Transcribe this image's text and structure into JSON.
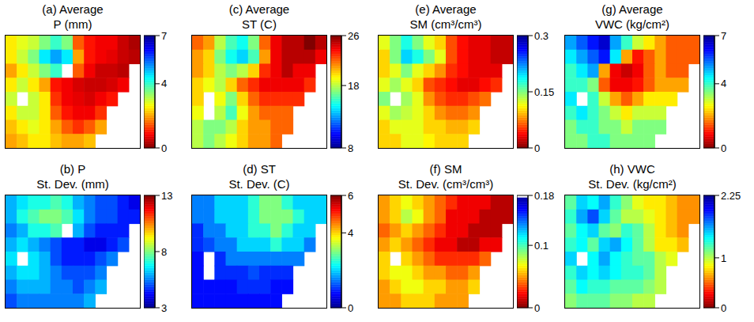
{
  "chart_data": [
    {
      "type": "heatmap",
      "title": [
        "(a) Average",
        "P (mm)"
      ],
      "colorbar": {
        "range": [
          0,
          7
        ],
        "ticks": [
          0,
          4,
          7
        ],
        "colors": [
          "#800000",
          "#ff0000",
          "#ff8000",
          "#ffff00",
          "#80ff80",
          "#00ffff",
          "#0080ff",
          "#0000ff",
          "#00008f"
        ]
      },
      "cells": [
        [
          2.5,
          2.8,
          3,
          3.5,
          4,
          3.5,
          1.5,
          1,
          0.8,
          0.8,
          0.5,
          0.3
        ],
        [
          2.5,
          3,
          3.5,
          4.5,
          5,
          4.5,
          2,
          1,
          0.8,
          0.7,
          0.5,
          0.4
        ],
        [
          2,
          2.5,
          3,
          3.5,
          4,
          null,
          1.5,
          0.8,
          0.5,
          0.5,
          0.4,
          null
        ],
        [
          2.5,
          3,
          2.5,
          2,
          1,
          0.8,
          0.6,
          0.5,
          0.5,
          0.6,
          0.8,
          null
        ],
        [
          3,
          null,
          3,
          2.5,
          1.2,
          0.8,
          0.7,
          0.6,
          0.8,
          1,
          null,
          null
        ],
        [
          2.5,
          3,
          3,
          2.5,
          1.5,
          1,
          0.8,
          0.8,
          1.2,
          null,
          null,
          null
        ],
        [
          2.2,
          2.5,
          2.8,
          2.5,
          2,
          1.5,
          1.2,
          1.5,
          2,
          null,
          null,
          null
        ],
        [
          2,
          2.2,
          2.5,
          2.5,
          2.2,
          2,
          2,
          2.2,
          null,
          null,
          null,
          null
        ]
      ]
    },
    {
      "type": "heatmap",
      "title": [
        "(b) P",
        "St. Dev. (mm)"
      ],
      "colorbar": {
        "range": [
          3,
          13
        ],
        "ticks": [
          3,
          8,
          13
        ],
        "colors": [
          "#00008f",
          "#0000ff",
          "#0080ff",
          "#00ffff",
          "#80ff80",
          "#ffff00",
          "#ff8000",
          "#ff0000",
          "#800000"
        ]
      },
      "cells": [
        [
          6,
          6.5,
          7,
          7,
          7.5,
          7,
          6,
          5.5,
          5,
          5,
          4.5,
          4
        ],
        [
          6,
          7,
          7.5,
          8,
          8,
          7.5,
          6.5,
          5.5,
          5,
          5,
          4.5,
          4.5
        ],
        [
          5.5,
          6,
          7,
          7,
          7.5,
          null,
          6,
          5,
          4.5,
          4.5,
          4.5,
          null
        ],
        [
          6,
          6.5,
          6,
          5.5,
          5,
          4.5,
          4.5,
          4,
          4,
          4.5,
          5,
          null
        ],
        [
          6.5,
          null,
          6.5,
          6,
          5,
          4.5,
          4.5,
          4.5,
          5,
          5.5,
          null,
          null
        ],
        [
          6,
          6.5,
          6.5,
          6,
          5.5,
          5,
          5,
          5,
          5.5,
          null,
          null,
          null
        ],
        [
          5.5,
          6,
          6,
          6,
          5.5,
          5.5,
          5,
          5.5,
          6,
          null,
          null,
          null
        ],
        [
          5,
          5.5,
          5.5,
          5.5,
          5.5,
          5.5,
          5.5,
          6,
          null,
          null,
          null,
          null
        ]
      ]
    },
    {
      "type": "heatmap",
      "title": [
        "(c) Average",
        "ST (C)"
      ],
      "colorbar": {
        "range": [
          8,
          26
        ],
        "ticks": [
          8,
          18,
          26
        ],
        "colors": [
          "#00008f",
          "#0000ff",
          "#0080ff",
          "#00ffff",
          "#80ff80",
          "#ffff00",
          "#ff8000",
          "#ff0000",
          "#800000"
        ]
      },
      "cells": [
        [
          22,
          21,
          18,
          16,
          15,
          17,
          22,
          24,
          25,
          25,
          26,
          25
        ],
        [
          21,
          20,
          17,
          15,
          14,
          16,
          21,
          24,
          25,
          25,
          25,
          24
        ],
        [
          21,
          20,
          18,
          17,
          18,
          20,
          23,
          24,
          25,
          24,
          24,
          null
        ],
        [
          20,
          19,
          18,
          20,
          22,
          23,
          24,
          24,
          24,
          24,
          23,
          null
        ],
        [
          20,
          null,
          19,
          17,
          20,
          22,
          23,
          23,
          23,
          23,
          null,
          null
        ],
        [
          19,
          null,
          18,
          16,
          19,
          21,
          22,
          22,
          22,
          null,
          null,
          null
        ],
        [
          18,
          17,
          17,
          18,
          20,
          21,
          21,
          22,
          22,
          null,
          null,
          null
        ],
        [
          18,
          17,
          18,
          19,
          20,
          21,
          21,
          22,
          null,
          null,
          null,
          null
        ]
      ]
    },
    {
      "type": "heatmap",
      "title": [
        "(d) ST",
        "St. Dev. (C)"
      ],
      "colorbar": {
        "range": [
          0,
          6
        ],
        "ticks": [
          0,
          4,
          6
        ],
        "colors": [
          "#00008f",
          "#0000ff",
          "#0080ff",
          "#00ffff",
          "#80ff80",
          "#ffff00",
          "#ff8000",
          "#ff0000",
          "#800000"
        ]
      },
      "cells": [
        [
          1.5,
          1.5,
          2,
          2,
          2,
          2.5,
          3,
          3,
          2.5,
          2,
          2,
          2
        ],
        [
          1.5,
          1.5,
          2,
          2,
          2,
          2.5,
          3,
          3,
          3,
          2.5,
          2,
          2
        ],
        [
          1,
          1.5,
          1.5,
          2,
          2,
          2.5,
          2.5,
          3,
          2.5,
          2,
          2,
          null
        ],
        [
          1,
          1.2,
          1.5,
          1.5,
          2,
          2,
          2,
          2.5,
          2,
          2,
          1.5,
          null
        ],
        [
          0.8,
          null,
          1,
          1.5,
          1.5,
          1.5,
          1.5,
          1.5,
          1.5,
          1.5,
          null,
          null
        ],
        [
          0.8,
          null,
          1,
          1,
          1,
          1.2,
          1,
          1,
          1,
          null,
          null,
          null
        ],
        [
          0.8,
          0.8,
          0.8,
          0.8,
          1,
          1,
          1,
          0.8,
          0.8,
          null,
          null,
          null
        ],
        [
          0.8,
          0.8,
          0.8,
          0.8,
          0.8,
          0.8,
          0.8,
          0.8,
          null,
          null,
          null,
          null
        ]
      ]
    },
    {
      "type": "heatmap",
      "title": [
        "(e) Average",
        "SM (cm³/cm³)"
      ],
      "colorbar": {
        "range": [
          0,
          0.3
        ],
        "ticks": [
          0,
          0.15,
          0.3
        ],
        "colors": [
          "#800000",
          "#ff0000",
          "#ff8000",
          "#ffff00",
          "#80ff80",
          "#00ffff",
          "#0080ff",
          "#0000ff",
          "#00008f"
        ]
      },
      "cells": [
        [
          0.12,
          0.15,
          0.18,
          0.15,
          0.12,
          0.1,
          0.06,
          0.04,
          0.03,
          0.03,
          0.02,
          0.02
        ],
        [
          0.1,
          0.15,
          0.2,
          0.18,
          0.15,
          0.12,
          0.06,
          0.04,
          0.03,
          0.03,
          0.02,
          0.02
        ],
        [
          0.1,
          0.12,
          0.15,
          0.12,
          0.1,
          0.08,
          0.05,
          0.04,
          0.03,
          0.03,
          0.03,
          null
        ],
        [
          0.12,
          0.14,
          0.12,
          0.1,
          0.06,
          0.05,
          0.04,
          0.03,
          0.03,
          0.04,
          0.05,
          null
        ],
        [
          0.15,
          null,
          0.14,
          0.12,
          0.08,
          0.06,
          0.05,
          0.05,
          0.06,
          0.07,
          null,
          null
        ],
        [
          0.12,
          0.14,
          0.13,
          0.12,
          0.1,
          0.08,
          0.07,
          0.07,
          0.08,
          null,
          null,
          null
        ],
        [
          0.1,
          0.12,
          0.12,
          0.12,
          0.1,
          0.1,
          0.09,
          0.09,
          0.1,
          null,
          null,
          null
        ],
        [
          0.1,
          0.1,
          0.12,
          0.12,
          0.11,
          0.1,
          0.1,
          0.1,
          null,
          null,
          null,
          null
        ]
      ]
    },
    {
      "type": "heatmap",
      "title": [
        "(f) SM",
        "St. Dev. (cm³/cm³)"
      ],
      "colorbar": {
        "range": [
          0,
          0.18
        ],
        "ticks": [
          0,
          0.1,
          0.18
        ],
        "colors": [
          "#800000",
          "#ff0000",
          "#ff8000",
          "#ffff00",
          "#80ff80",
          "#00ffff",
          "#0080ff",
          "#0000ff",
          "#00008f"
        ]
      },
      "cells": [
        [
          0.05,
          0.06,
          0.07,
          0.06,
          0.05,
          0.04,
          0.03,
          0.02,
          0.02,
          0.02,
          0.01,
          0.01
        ],
        [
          0.05,
          0.06,
          0.08,
          0.07,
          0.05,
          0.04,
          0.02,
          0.02,
          0.02,
          0.01,
          0.01,
          0.01
        ],
        [
          0.04,
          0.05,
          0.06,
          0.05,
          0.04,
          0.03,
          0.02,
          0.02,
          0.01,
          0.01,
          0.01,
          null
        ],
        [
          0.05,
          0.06,
          0.05,
          0.04,
          0.03,
          0.02,
          0.02,
          0.01,
          0.01,
          0.02,
          0.02,
          null
        ],
        [
          0.06,
          null,
          0.06,
          0.05,
          0.04,
          0.03,
          0.03,
          0.03,
          0.03,
          0.04,
          null,
          null
        ],
        [
          0.06,
          0.07,
          0.07,
          0.06,
          0.05,
          0.05,
          0.04,
          0.04,
          0.05,
          null,
          null,
          null
        ],
        [
          0.05,
          0.06,
          0.07,
          0.07,
          0.06,
          0.06,
          0.05,
          0.05,
          0.06,
          null,
          null,
          null
        ],
        [
          0.05,
          0.05,
          0.06,
          0.06,
          0.06,
          0.05,
          0.05,
          0.05,
          null,
          null,
          null,
          null
        ]
      ]
    },
    {
      "type": "heatmap",
      "title": [
        "(g) Average",
        "VWC (kg/cm²)"
      ],
      "colorbar": {
        "range": [
          0,
          7
        ],
        "ticks": [
          0,
          4,
          7
        ],
        "colors": [
          "#800000",
          "#ff0000",
          "#ff8000",
          "#ffff00",
          "#80ff80",
          "#00ffff",
          "#0080ff",
          "#0000ff",
          "#00008f"
        ]
      },
      "cells": [
        [
          5,
          5.5,
          6,
          6.5,
          5,
          4,
          3,
          2.5,
          2,
          1.5,
          1.5,
          1.5
        ],
        [
          4.5,
          5,
          5.5,
          6,
          4.5,
          2,
          1,
          1.5,
          2,
          1.5,
          1.5,
          1.5
        ],
        [
          4,
          4.5,
          5,
          2,
          0.8,
          0.5,
          0.8,
          1.5,
          2,
          1.5,
          1.5,
          null
        ],
        [
          4,
          4,
          3.5,
          1.5,
          0.8,
          0.8,
          1,
          1.5,
          2,
          2,
          2,
          null
        ],
        [
          4.5,
          null,
          4,
          3,
          2,
          1.5,
          2,
          2.5,
          2.5,
          2.5,
          null,
          null
        ],
        [
          4,
          4.5,
          4,
          3.5,
          3,
          2.5,
          3,
          3,
          3,
          null,
          null,
          null
        ],
        [
          3.5,
          4,
          4,
          3.5,
          3.5,
          3,
          3.5,
          3.5,
          3.5,
          null,
          null,
          null
        ],
        [
          3.5,
          3.5,
          4,
          4,
          3.5,
          3.5,
          3.5,
          3.5,
          null,
          null,
          null,
          null
        ]
      ]
    },
    {
      "type": "heatmap",
      "title": [
        "(h) VWC",
        "St. Dev. (kg/cm²)"
      ],
      "colorbar": {
        "range": [
          0,
          2.25
        ],
        "ticks": [
          0,
          1,
          2.25
        ],
        "colors": [
          "#800000",
          "#ff0000",
          "#ff8000",
          "#ffff00",
          "#80ff80",
          "#00ffff",
          "#0080ff",
          "#0000ff",
          "#00008f"
        ]
      },
      "cells": [
        [
          1.2,
          1.5,
          1.4,
          1.6,
          1.3,
          1.1,
          0.9,
          0.8,
          0.8,
          0.7,
          0.6,
          0.6
        ],
        [
          1.3,
          1.6,
          1.8,
          1.5,
          1.2,
          1,
          1,
          0.9,
          0.8,
          0.7,
          0.6,
          0.6
        ],
        [
          1.2,
          1.4,
          1.5,
          1.2,
          1.1,
          1.3,
          1.2,
          1,
          0.8,
          0.7,
          0.6,
          null
        ],
        [
          1.3,
          1.4,
          1.2,
          1.5,
          1.6,
          1.4,
          1.2,
          1,
          0.8,
          0.8,
          0.7,
          null
        ],
        [
          1.5,
          null,
          1.4,
          1.6,
          1.4,
          1.3,
          1.2,
          1.2,
          1,
          0.9,
          null,
          null
        ],
        [
          1.3,
          1.5,
          1.4,
          1.5,
          1.4,
          1.3,
          1.3,
          1.2,
          1,
          null,
          null,
          null
        ],
        [
          1.2,
          1.4,
          1.3,
          1.3,
          1.2,
          1.2,
          1.2,
          1.1,
          1,
          null,
          null,
          null
        ],
        [
          1.1,
          1.2,
          1.2,
          1.2,
          1.1,
          1.1,
          1,
          1,
          null,
          null,
          null,
          null
        ]
      ]
    }
  ]
}
